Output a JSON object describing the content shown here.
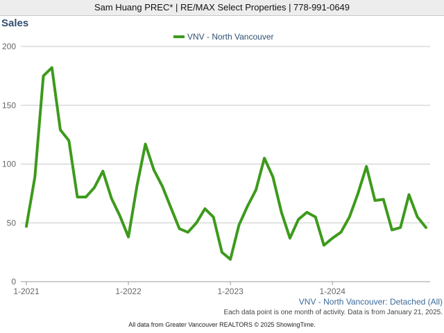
{
  "header": {
    "text": "Sam Huang PREC* | RE/MAX Select Properties | 778-991-0649"
  },
  "series_caption": "VNV - North Vancouver: Detached (All)",
  "note": "Each data point is one month of activity. Data is from January 21, 2025.",
  "footer": "All data from Greater Vancouver REALTORS © 2025 ShowingTime.",
  "colors": {
    "series": "#3d9a1c",
    "grid": "#c8c8c8",
    "axis": "#999999"
  },
  "chart_data": {
    "type": "line",
    "title": "Sales",
    "xlabel": "",
    "ylabel": "",
    "ylim": [
      0,
      200
    ],
    "yticks": [
      0,
      50,
      100,
      150,
      200
    ],
    "xticks": [
      {
        "label": "1-2021",
        "index": 0
      },
      {
        "label": "1-2022",
        "index": 12
      },
      {
        "label": "1-2023",
        "index": 24
      },
      {
        "label": "1-2024",
        "index": 36
      }
    ],
    "legend": "top-center",
    "grid": true,
    "x": [
      "2021-01",
      "2021-02",
      "2021-03",
      "2021-04",
      "2021-05",
      "2021-06",
      "2021-07",
      "2021-08",
      "2021-09",
      "2021-10",
      "2021-11",
      "2021-12",
      "2022-01",
      "2022-02",
      "2022-03",
      "2022-04",
      "2022-05",
      "2022-06",
      "2022-07",
      "2022-08",
      "2022-09",
      "2022-10",
      "2022-11",
      "2022-12",
      "2023-01",
      "2023-02",
      "2023-03",
      "2023-04",
      "2023-05",
      "2023-06",
      "2023-07",
      "2023-08",
      "2023-09",
      "2023-10",
      "2023-11",
      "2023-12",
      "2024-01",
      "2024-02",
      "2024-03",
      "2024-04",
      "2024-05",
      "2024-06",
      "2024-07",
      "2024-08",
      "2024-09",
      "2024-10",
      "2024-11",
      "2024-12"
    ],
    "series": [
      {
        "name": "VNV - North Vancouver",
        "values": [
          47,
          89,
          175,
          182,
          129,
          120,
          72,
          72,
          80,
          94,
          71,
          56,
          38,
          81,
          117,
          95,
          81,
          63,
          45,
          42,
          50,
          62,
          55,
          25,
          19,
          48,
          64,
          78,
          105,
          89,
          59,
          37,
          53,
          59,
          55,
          31,
          37,
          42,
          55,
          75,
          98,
          69,
          70,
          44,
          46,
          74,
          55,
          46
        ]
      }
    ]
  }
}
